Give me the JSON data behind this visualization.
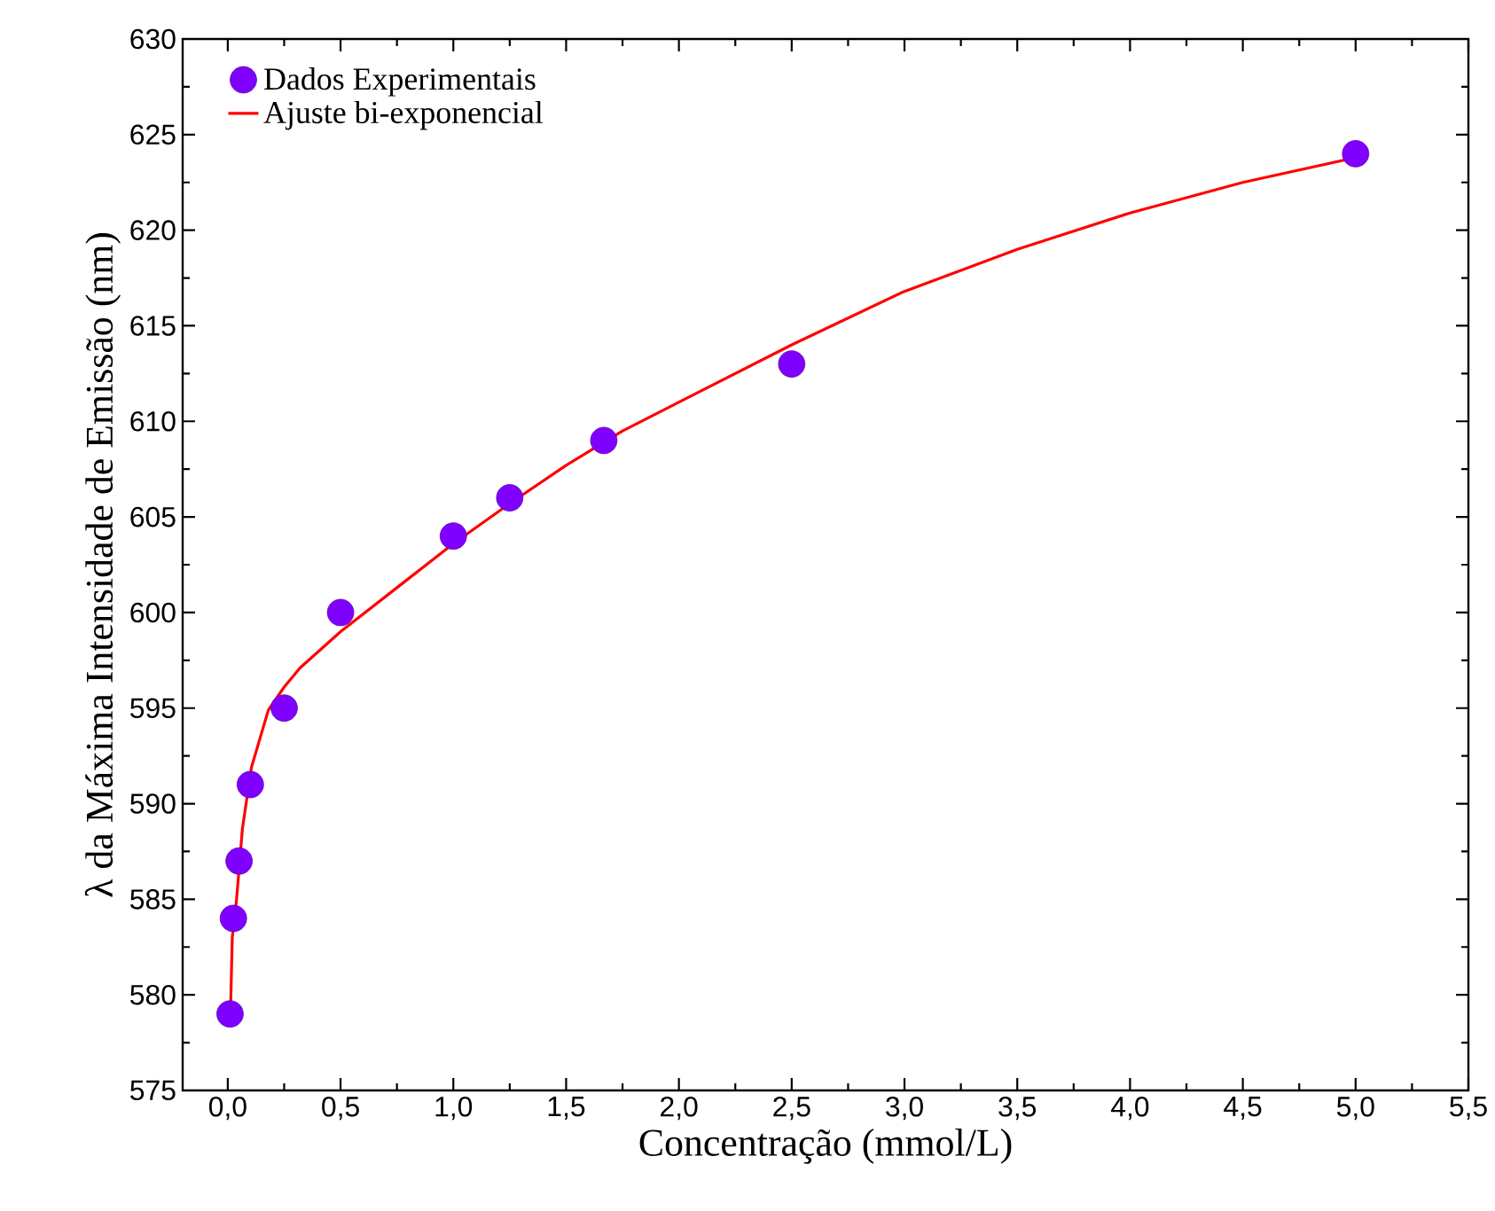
{
  "chart_data": {
    "type": "scatter",
    "xlabel": "Concentração (mmol/L)",
    "ylabel": "λ da Máxima Intensidade de Emissão (nm)",
    "xlim": [
      -0.2,
      5.5
    ],
    "ylim": [
      575,
      630
    ],
    "xticks": [
      {
        "value": 0,
        "label": "0,0"
      },
      {
        "value": 0.5,
        "label": "0,5"
      },
      {
        "value": 1,
        "label": "1,0"
      },
      {
        "value": 1.5,
        "label": "1,5"
      },
      {
        "value": 2,
        "label": "2,0"
      },
      {
        "value": 2.5,
        "label": "2,5"
      },
      {
        "value": 3,
        "label": "3,0"
      },
      {
        "value": 3.5,
        "label": "3,5"
      },
      {
        "value": 4,
        "label": "4,0"
      },
      {
        "value": 4.5,
        "label": "4,5"
      },
      {
        "value": 5,
        "label": "5,0"
      },
      {
        "value": 5.5,
        "label": "5,5"
      }
    ],
    "yticks": [
      575,
      580,
      585,
      590,
      595,
      600,
      605,
      610,
      615,
      620,
      625,
      630
    ],
    "grid": false,
    "legend": "top left",
    "series": [
      {
        "name": "Dados Experimentais",
        "marker": "circle",
        "color": "#8000ff",
        "x": [
          0.01,
          0.025,
          0.05,
          0.1,
          0.25,
          0.5,
          1.0,
          1.25,
          1.667,
          2.5,
          5.0
        ],
        "values": [
          579,
          584,
          587,
          591,
          595,
          600,
          604,
          606,
          609,
          613,
          624
        ]
      },
      {
        "name": "Ajuste bi-exponencial",
        "type": "line",
        "marker": "none",
        "line_style": "solid",
        "color": "#ff0000",
        "x": [
          0.013,
          0.02,
          0.039,
          0.065,
          0.105,
          0.18,
          0.25,
          0.32,
          0.5,
          0.75,
          1.0,
          1.25,
          1.5,
          1.75,
          2.0,
          2.5,
          3.0,
          3.5,
          4.0,
          4.5,
          5.0
        ],
        "values": [
          579.6,
          583,
          585,
          588.7,
          591.9,
          594.9,
          596.1,
          597.1,
          599.0,
          601.3,
          603.6,
          605.7,
          607.7,
          609.5,
          611.0,
          614.0,
          616.8,
          619.0,
          620.9,
          622.5,
          623.8
        ]
      }
    ]
  }
}
